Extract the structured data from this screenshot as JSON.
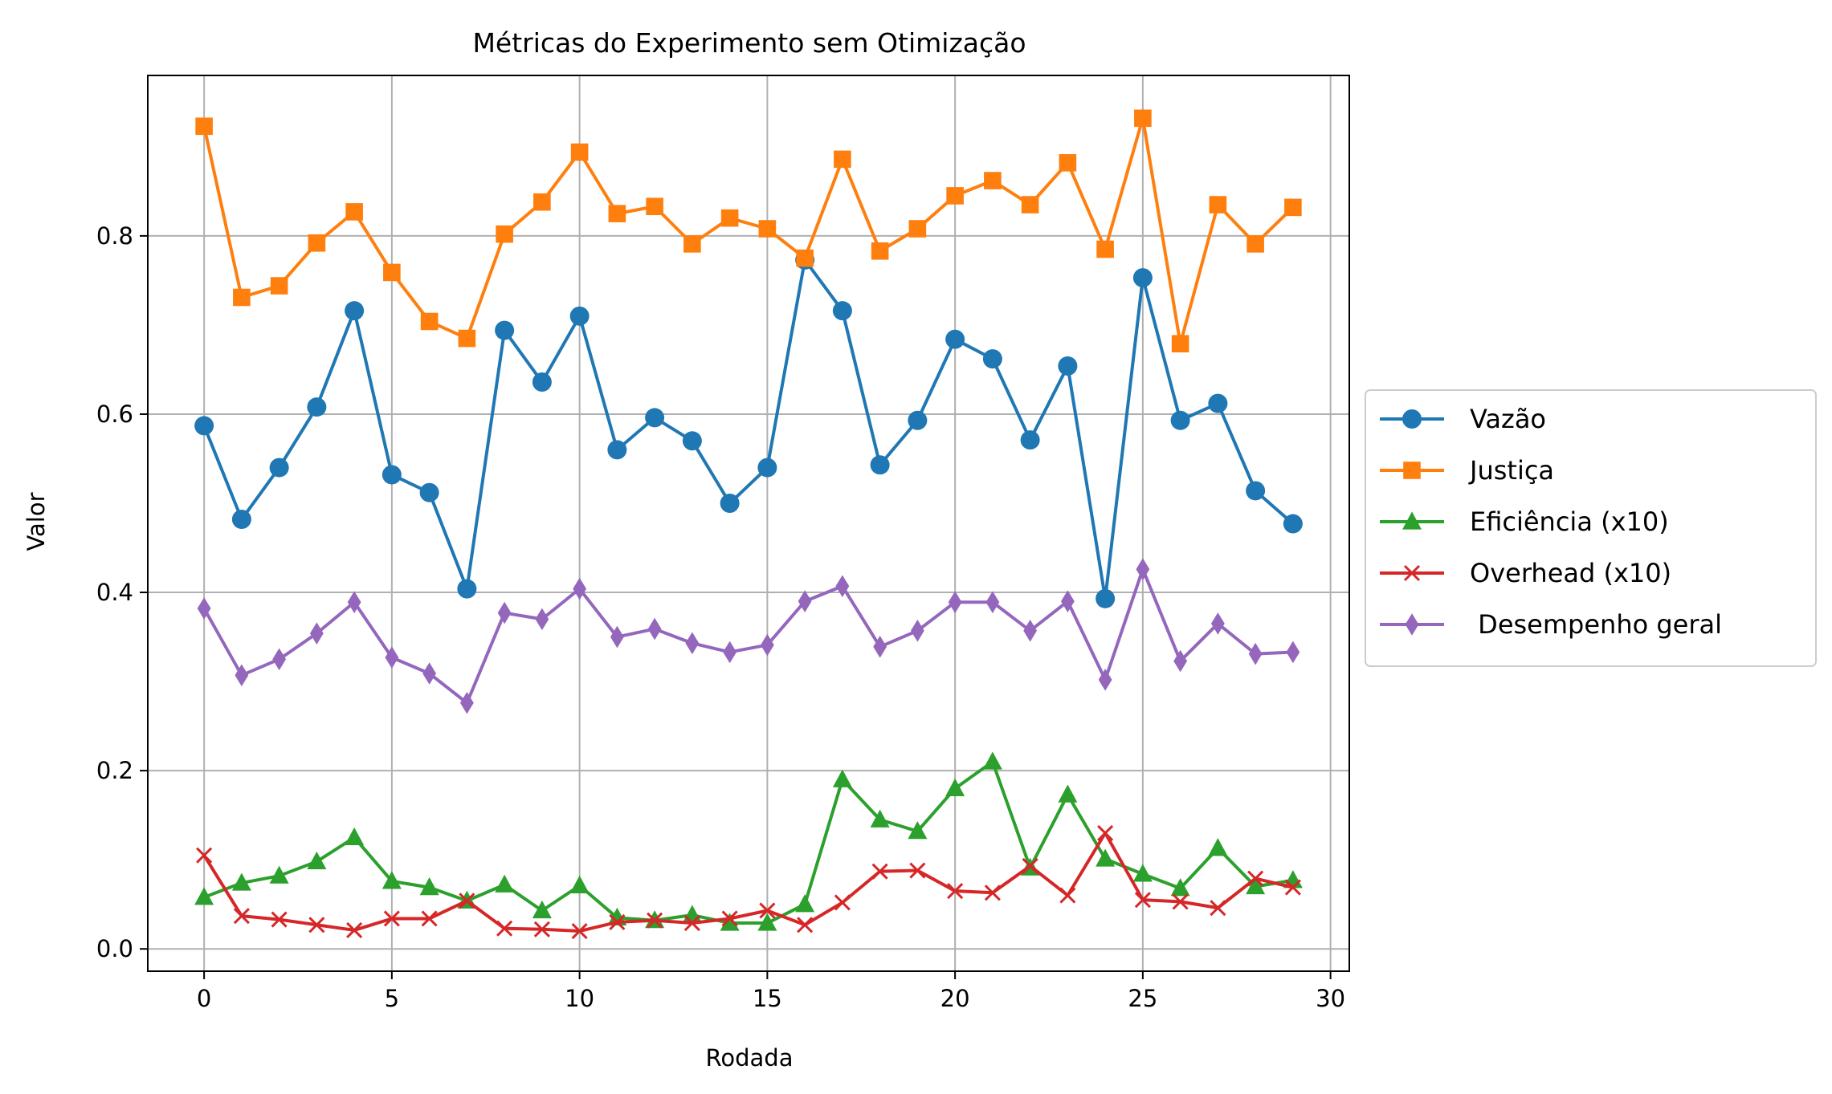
{
  "chart_data": {
    "type": "line",
    "title": "Métricas do Experimento sem Otimização",
    "xlabel": "Rodada",
    "ylabel": "Valor",
    "xlim": [
      -1.5,
      30.5
    ],
    "ylim": [
      -0.025,
      0.98
    ],
    "xticks": [
      0,
      5,
      10,
      15,
      20,
      25,
      30
    ],
    "xtick_labels": [
      "0",
      "5",
      "10",
      "15",
      "20",
      "25",
      "30"
    ],
    "yticks": [
      0.0,
      0.2,
      0.4,
      0.6,
      0.8
    ],
    "ytick_labels": [
      "0.0",
      "0.2",
      "0.4",
      "0.6",
      "0.8"
    ],
    "grid": true,
    "legend_position": "center-right-outside",
    "x": [
      0,
      1,
      2,
      3,
      4,
      5,
      6,
      7,
      8,
      9,
      10,
      11,
      12,
      13,
      14,
      15,
      16,
      17,
      18,
      19,
      20,
      21,
      22,
      23,
      24,
      25,
      26,
      27,
      28,
      29
    ],
    "series": [
      {
        "name": "Vazão",
        "color": "#1f77b4",
        "marker": "circle",
        "values": [
          0.587,
          0.482,
          0.54,
          0.608,
          0.716,
          0.532,
          0.512,
          0.404,
          0.694,
          0.636,
          0.71,
          0.56,
          0.596,
          0.57,
          0.5,
          0.54,
          0.773,
          0.716,
          0.543,
          0.593,
          0.684,
          0.662,
          0.571,
          0.654,
          0.393,
          0.753,
          0.593,
          0.612,
          0.514,
          0.477
        ]
      },
      {
        "name": "Justiça",
        "color": "#ff7f0e",
        "marker": "square",
        "values": [
          0.923,
          0.731,
          0.744,
          0.792,
          0.827,
          0.759,
          0.704,
          0.685,
          0.802,
          0.838,
          0.894,
          0.825,
          0.833,
          0.791,
          0.82,
          0.808,
          0.775,
          0.886,
          0.783,
          0.808,
          0.845,
          0.862,
          0.835,
          0.882,
          0.785,
          0.932,
          0.679,
          0.835,
          0.791,
          0.832
        ]
      },
      {
        "name": "Eficiência (x10)",
        "color": "#2ca02c",
        "marker": "triangle",
        "values": [
          0.058,
          0.074,
          0.082,
          0.098,
          0.125,
          0.076,
          0.069,
          0.054,
          0.072,
          0.043,
          0.071,
          0.035,
          0.032,
          0.038,
          0.029,
          0.029,
          0.05,
          0.19,
          0.145,
          0.132,
          0.18,
          0.21,
          0.091,
          0.173,
          0.101,
          0.084,
          0.068,
          0.113,
          0.07,
          0.077
        ]
      },
      {
        "name": "Overhead (x10)",
        "color": "#d62728",
        "marker": "x",
        "values": [
          0.105,
          0.037,
          0.033,
          0.027,
          0.021,
          0.034,
          0.034,
          0.054,
          0.023,
          0.022,
          0.02,
          0.03,
          0.032,
          0.029,
          0.034,
          0.043,
          0.027,
          0.052,
          0.087,
          0.088,
          0.065,
          0.063,
          0.093,
          0.06,
          0.13,
          0.055,
          0.053,
          0.046,
          0.079,
          0.069
        ]
      },
      {
        "name": " Desempenho geral",
        "color": "#9467bd",
        "marker": "diamond",
        "values": [
          0.382,
          0.307,
          0.325,
          0.354,
          0.389,
          0.327,
          0.309,
          0.276,
          0.377,
          0.37,
          0.404,
          0.35,
          0.359,
          0.343,
          0.333,
          0.341,
          0.39,
          0.407,
          0.339,
          0.357,
          0.389,
          0.389,
          0.357,
          0.39,
          0.302,
          0.426,
          0.323,
          0.365,
          0.331,
          0.333
        ]
      }
    ]
  }
}
